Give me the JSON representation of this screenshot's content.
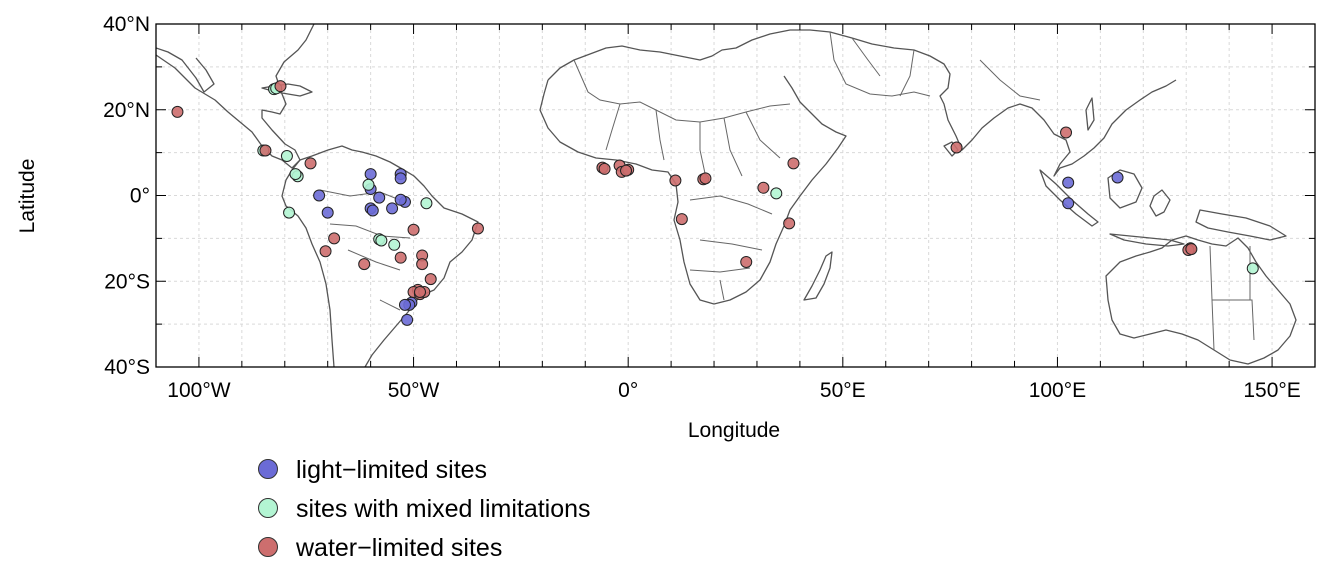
{
  "axes": {
    "xlabel": "Longitude",
    "ylabel": "Latitude",
    "xlim": [
      -110,
      160
    ],
    "ylim": [
      -40,
      40
    ],
    "xticks": [
      {
        "value": -100,
        "label": "100°W"
      },
      {
        "value": -50,
        "label": "50°W"
      },
      {
        "value": 0,
        "label": "0°"
      },
      {
        "value": 50,
        "label": "50°E"
      },
      {
        "value": 100,
        "label": "100°E"
      },
      {
        "value": 150,
        "label": "150°E"
      }
    ],
    "yticks": [
      {
        "value": 40,
        "label": "40°N"
      },
      {
        "value": 20,
        "label": "20°N"
      },
      {
        "value": 0,
        "label": "0°"
      },
      {
        "value": -20,
        "label": "20°S"
      },
      {
        "value": -40,
        "label": "40°S"
      }
    ],
    "grid": true
  },
  "legend": {
    "placement": "bottom-left",
    "items": [
      {
        "label": "light−limited sites",
        "color": "#6b6bd6"
      },
      {
        "label": "sites with mixed limitations",
        "color": "#b3f5d3"
      },
      {
        "label": "water−limited sites",
        "color": "#cd6e6e"
      }
    ]
  },
  "chart_data": {
    "type": "scatter",
    "xlabel": "Longitude",
    "ylabel": "Latitude",
    "xlim": [
      -110,
      160
    ],
    "ylim": [
      -40,
      40
    ],
    "series": [
      {
        "name": "light−limited sites",
        "color": "#6b6bd6",
        "points": [
          [
            -72,
            0
          ],
          [
            -70,
            -4
          ],
          [
            -60,
            5
          ],
          [
            -60,
            1.5
          ],
          [
            -60,
            -3
          ],
          [
            -59.5,
            -3.5
          ],
          [
            -55,
            -3
          ],
          [
            -53,
            5
          ],
          [
            -53,
            4
          ],
          [
            -52,
            -1.5
          ],
          [
            -53,
            -1
          ],
          [
            -58,
            -0.5
          ],
          [
            -50.5,
            -25
          ],
          [
            -51,
            -25.5
          ],
          [
            -52,
            -25.5
          ],
          [
            -51.5,
            -29
          ],
          [
            102.5,
            3
          ],
          [
            102.5,
            -1.8
          ],
          [
            114,
            4.2
          ]
        ]
      },
      {
        "name": "sites with mixed limitations",
        "color": "#b3f5d3",
        "points": [
          [
            -82.5,
            24.8
          ],
          [
            -82,
            25
          ],
          [
            -85,
            10.5
          ],
          [
            -79.5,
            9.2
          ],
          [
            -77,
            4.5
          ],
          [
            -77.5,
            5
          ],
          [
            -79,
            -4
          ],
          [
            -60.5,
            2.5
          ],
          [
            -58,
            -10.2
          ],
          [
            -57.5,
            -10.5
          ],
          [
            -54.5,
            -11.5
          ],
          [
            -47,
            -1.8
          ],
          [
            34.5,
            0.5
          ],
          [
            145.5,
            -17
          ]
        ]
      },
      {
        "name": "water−limited sites",
        "color": "#cd6e6e",
        "points": [
          [
            -105,
            19.5
          ],
          [
            -81,
            25.5
          ],
          [
            -84.5,
            10.5
          ],
          [
            -74,
            7.5
          ],
          [
            -70.5,
            -13
          ],
          [
            -68.5,
            -10
          ],
          [
            -61.5,
            -16
          ],
          [
            -50,
            -8
          ],
          [
            -48,
            -14
          ],
          [
            -53,
            -14.5
          ],
          [
            -48,
            -16
          ],
          [
            -46,
            -19.5
          ],
          [
            -49,
            -22
          ],
          [
            -50,
            -22.5
          ],
          [
            -48.5,
            -23
          ],
          [
            -47.5,
            -22.5
          ],
          [
            -48.5,
            -22.5
          ],
          [
            -35,
            -7.7
          ],
          [
            -6,
            6.5
          ],
          [
            -5.5,
            6.2
          ],
          [
            -2,
            7
          ],
          [
            -1.5,
            5.5
          ],
          [
            0,
            6
          ],
          [
            -0.5,
            5.8
          ],
          [
            11,
            3.5
          ],
          [
            17.5,
            3.8
          ],
          [
            18,
            4
          ],
          [
            12.5,
            -5.5
          ],
          [
            27.5,
            -15.5
          ],
          [
            31.5,
            1.8
          ],
          [
            37.5,
            -6.5
          ],
          [
            38.5,
            7.5
          ],
          [
            76.5,
            11.2
          ],
          [
            102,
            14.7
          ],
          [
            131,
            -12.3
          ],
          [
            130.5,
            -12.7
          ],
          [
            131.2,
            -12.5
          ]
        ]
      }
    ]
  }
}
